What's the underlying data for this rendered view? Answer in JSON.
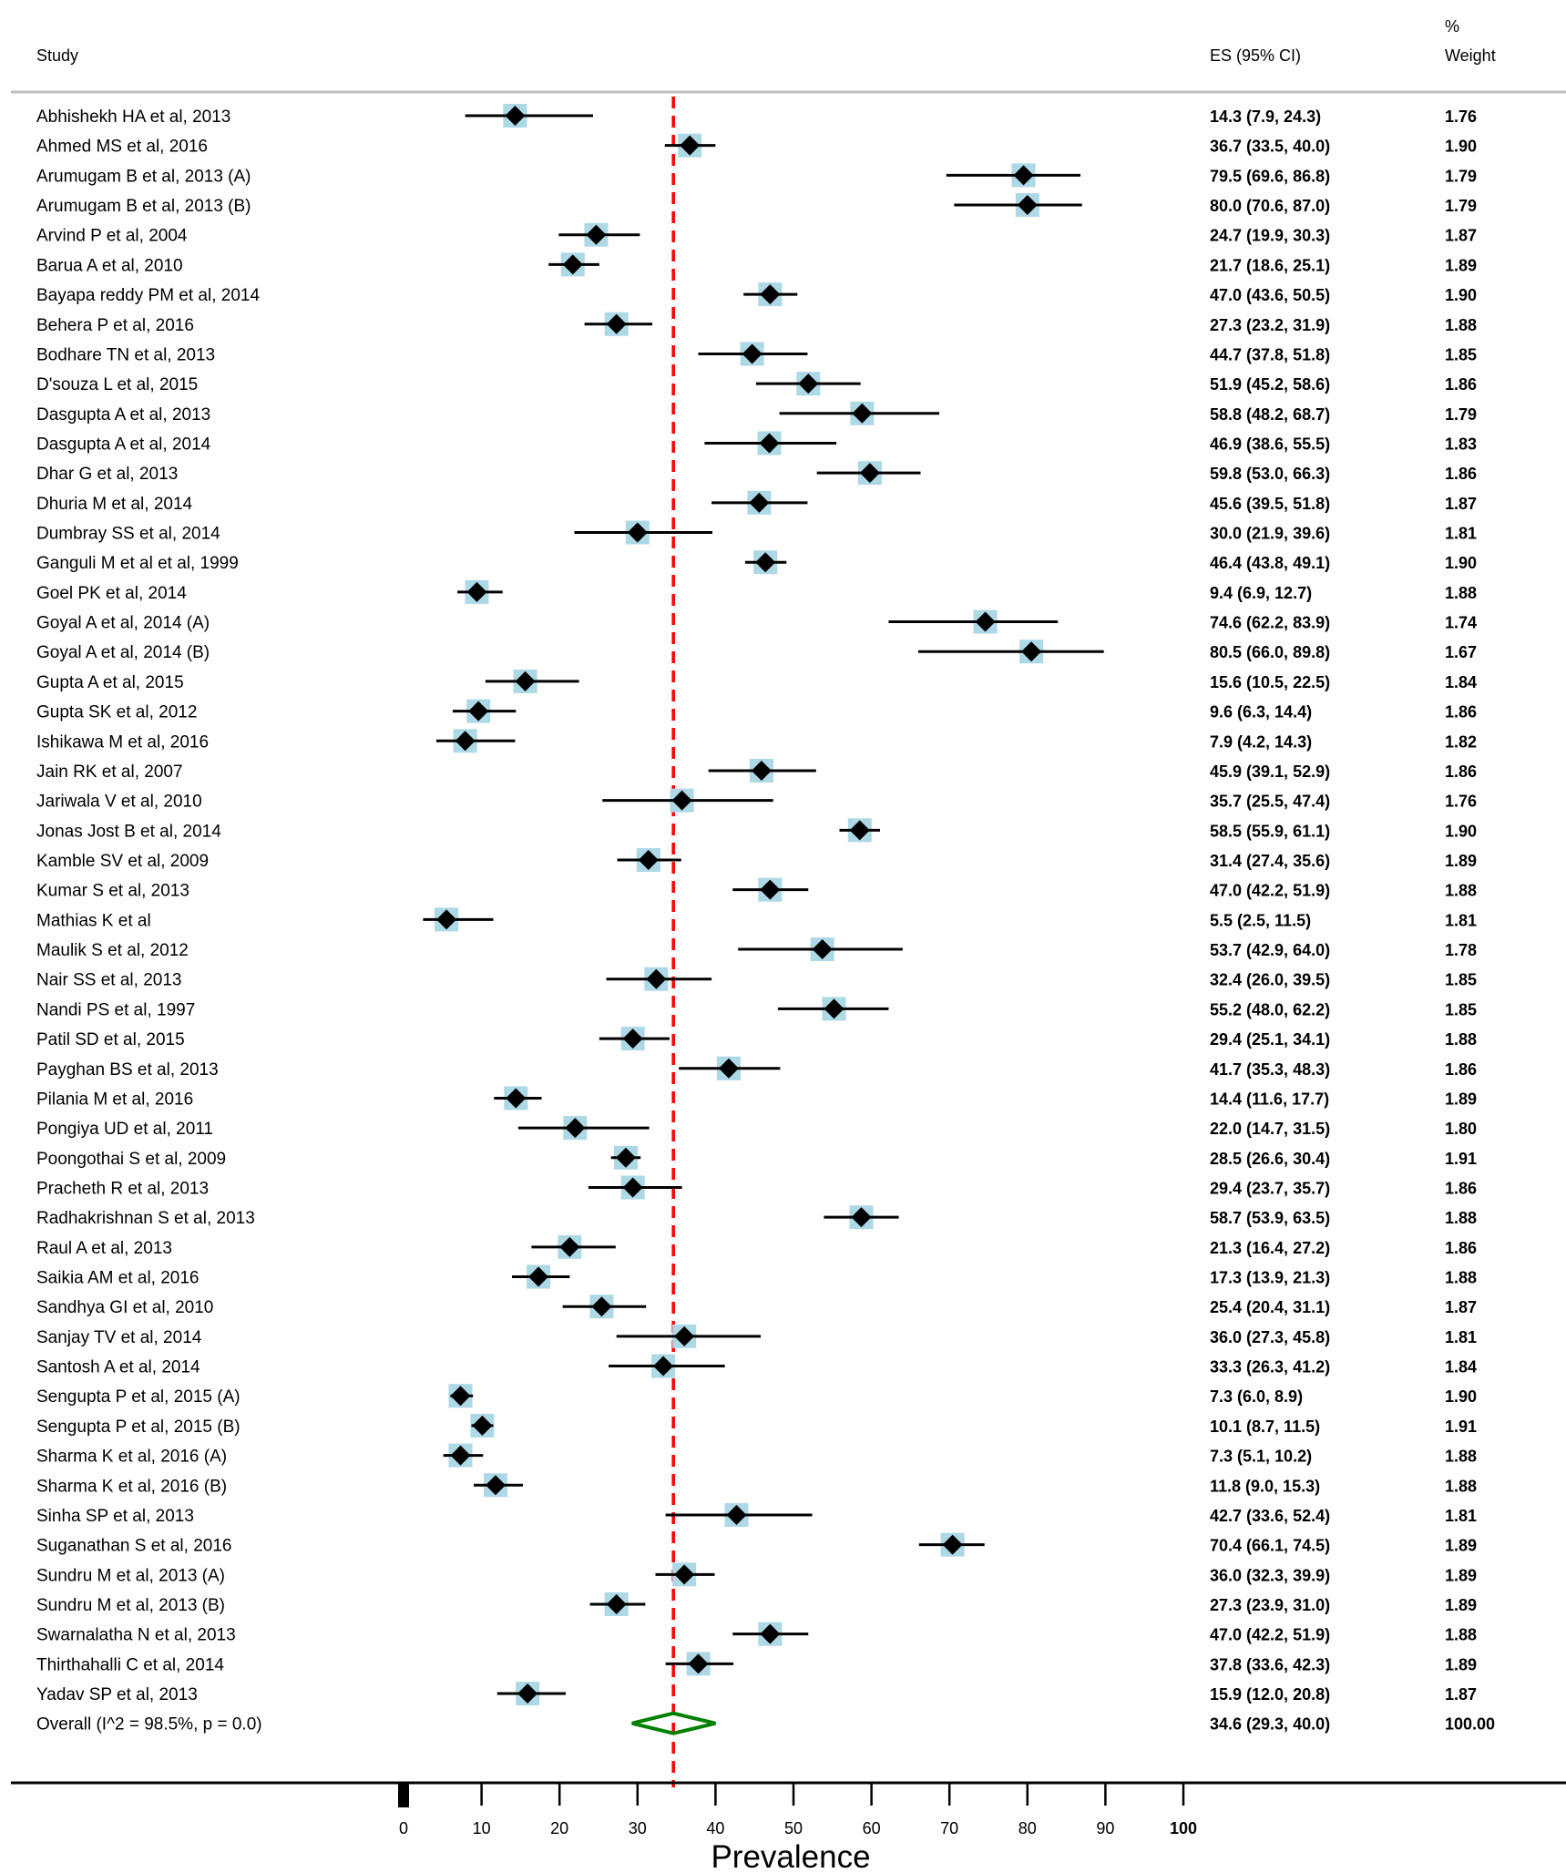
{
  "chart_data": {
    "type": "forest",
    "xlabel": "Prevalence",
    "headers": {
      "study": "Study",
      "es": "ES (95% CI)",
      "weight_line1": "%",
      "weight_line2": "Weight"
    },
    "xticks": [
      "0",
      "10",
      "20",
      "30",
      "40",
      "50",
      "60",
      "70",
      "80",
      "90",
      "100"
    ],
    "xlim": [
      0,
      100
    ],
    "overall_line": 34.6,
    "colors": {
      "ci": "#000000",
      "box": "#add8e6",
      "diamond": "#000000",
      "overall": "#008000",
      "ref_line": "#ff0000",
      "rule": "#bfbfbf"
    },
    "studies": [
      {
        "label": "Abhishekh HA et al, 2013",
        "es": 14.3,
        "lo": 7.9,
        "hi": 24.3,
        "es_text": "14.3 (7.9, 24.3)",
        "weight": "1.76"
      },
      {
        "label": "Ahmed MS et al, 2016",
        "es": 36.7,
        "lo": 33.5,
        "hi": 40.0,
        "es_text": "36.7 (33.5, 40.0)",
        "weight": "1.90"
      },
      {
        "label": "Arumugam B et al, 2013 (A)",
        "es": 79.5,
        "lo": 69.6,
        "hi": 86.8,
        "es_text": "79.5 (69.6, 86.8)",
        "weight": "1.79"
      },
      {
        "label": "Arumugam B et al, 2013 (B)",
        "es": 80.0,
        "lo": 70.6,
        "hi": 87.0,
        "es_text": "80.0 (70.6, 87.0)",
        "weight": "1.79"
      },
      {
        "label": "Arvind P et al, 2004",
        "es": 24.7,
        "lo": 19.9,
        "hi": 30.3,
        "es_text": "24.7 (19.9, 30.3)",
        "weight": "1.87"
      },
      {
        "label": "Barua A et al, 2010",
        "es": 21.7,
        "lo": 18.6,
        "hi": 25.1,
        "es_text": "21.7 (18.6, 25.1)",
        "weight": "1.89"
      },
      {
        "label": "Bayapa reddy PM et al, 2014",
        "es": 47.0,
        "lo": 43.6,
        "hi": 50.5,
        "es_text": "47.0 (43.6, 50.5)",
        "weight": "1.90"
      },
      {
        "label": "Behera P et al, 2016",
        "es": 27.3,
        "lo": 23.2,
        "hi": 31.9,
        "es_text": "27.3 (23.2, 31.9)",
        "weight": "1.88"
      },
      {
        "label": "Bodhare TN et al, 2013",
        "es": 44.7,
        "lo": 37.8,
        "hi": 51.8,
        "es_text": "44.7 (37.8, 51.8)",
        "weight": "1.85"
      },
      {
        "label": "D'souza L et al, 2015",
        "es": 51.9,
        "lo": 45.2,
        "hi": 58.6,
        "es_text": "51.9 (45.2, 58.6)",
        "weight": "1.86"
      },
      {
        "label": "Dasgupta A et al, 2013",
        "es": 58.8,
        "lo": 48.2,
        "hi": 68.7,
        "es_text": "58.8 (48.2, 68.7)",
        "weight": "1.79"
      },
      {
        "label": "Dasgupta A et al, 2014",
        "es": 46.9,
        "lo": 38.6,
        "hi": 55.5,
        "es_text": "46.9 (38.6, 55.5)",
        "weight": "1.83"
      },
      {
        "label": "Dhar G et al, 2013",
        "es": 59.8,
        "lo": 53.0,
        "hi": 66.3,
        "es_text": "59.8 (53.0, 66.3)",
        "weight": "1.86"
      },
      {
        "label": "Dhuria M et al, 2014",
        "es": 45.6,
        "lo": 39.5,
        "hi": 51.8,
        "es_text": "45.6 (39.5, 51.8)",
        "weight": "1.87"
      },
      {
        "label": "Dumbray SS et al, 2014",
        "es": 30.0,
        "lo": 21.9,
        "hi": 39.6,
        "es_text": "30.0 (21.9, 39.6)",
        "weight": "1.81"
      },
      {
        "label": "Ganguli M et al et al, 1999",
        "es": 46.4,
        "lo": 43.8,
        "hi": 49.1,
        "es_text": "46.4 (43.8, 49.1)",
        "weight": "1.90"
      },
      {
        "label": "Goel PK et al, 2014",
        "es": 9.4,
        "lo": 6.9,
        "hi": 12.7,
        "es_text": "9.4 (6.9, 12.7)",
        "weight": "1.88"
      },
      {
        "label": "Goyal A et al, 2014 (A)",
        "es": 74.6,
        "lo": 62.2,
        "hi": 83.9,
        "es_text": "74.6 (62.2, 83.9)",
        "weight": "1.74"
      },
      {
        "label": "Goyal A et al, 2014 (B)",
        "es": 80.5,
        "lo": 66.0,
        "hi": 89.8,
        "es_text": "80.5 (66.0, 89.8)",
        "weight": "1.67"
      },
      {
        "label": "Gupta A et al, 2015",
        "es": 15.6,
        "lo": 10.5,
        "hi": 22.5,
        "es_text": "15.6 (10.5, 22.5)",
        "weight": "1.84"
      },
      {
        "label": "Gupta SK et al, 2012",
        "es": 9.6,
        "lo": 6.3,
        "hi": 14.4,
        "es_text": "9.6 (6.3, 14.4)",
        "weight": "1.86"
      },
      {
        "label": "Ishikawa M et al, 2016",
        "es": 7.9,
        "lo": 4.2,
        "hi": 14.3,
        "es_text": "7.9 (4.2, 14.3)",
        "weight": "1.82"
      },
      {
        "label": "Jain RK et al, 2007",
        "es": 45.9,
        "lo": 39.1,
        "hi": 52.9,
        "es_text": "45.9 (39.1, 52.9)",
        "weight": "1.86"
      },
      {
        "label": "Jariwala V et al, 2010",
        "es": 35.7,
        "lo": 25.5,
        "hi": 47.4,
        "es_text": "35.7 (25.5, 47.4)",
        "weight": "1.76"
      },
      {
        "label": "Jonas Jost B et al, 2014",
        "es": 58.5,
        "lo": 55.9,
        "hi": 61.1,
        "es_text": "58.5 (55.9, 61.1)",
        "weight": "1.90"
      },
      {
        "label": "Kamble SV et al, 2009",
        "es": 31.4,
        "lo": 27.4,
        "hi": 35.6,
        "es_text": "31.4 (27.4, 35.6)",
        "weight": "1.89"
      },
      {
        "label": "Kumar S et al, 2013",
        "es": 47.0,
        "lo": 42.2,
        "hi": 51.9,
        "es_text": "47.0 (42.2, 51.9)",
        "weight": "1.88"
      },
      {
        "label": "Mathias K et al",
        "es": 5.5,
        "lo": 2.5,
        "hi": 11.5,
        "es_text": "5.5 (2.5, 11.5)",
        "weight": "1.81"
      },
      {
        "label": "Maulik S et al, 2012",
        "es": 53.7,
        "lo": 42.9,
        "hi": 64.0,
        "es_text": "53.7 (42.9, 64.0)",
        "weight": "1.78"
      },
      {
        "label": "Nair SS et al, 2013",
        "es": 32.4,
        "lo": 26.0,
        "hi": 39.5,
        "es_text": "32.4 (26.0, 39.5)",
        "weight": "1.85"
      },
      {
        "label": "Nandi PS et al, 1997",
        "es": 55.2,
        "lo": 48.0,
        "hi": 62.2,
        "es_text": "55.2 (48.0, 62.2)",
        "weight": "1.85"
      },
      {
        "label": "Patil  SD et al, 2015",
        "es": 29.4,
        "lo": 25.1,
        "hi": 34.1,
        "es_text": "29.4 (25.1, 34.1)",
        "weight": "1.88"
      },
      {
        "label": "Payghan BS et al, 2013",
        "es": 41.7,
        "lo": 35.3,
        "hi": 48.3,
        "es_text": "41.7 (35.3, 48.3)",
        "weight": "1.86"
      },
      {
        "label": "Pilania M et al, 2016",
        "es": 14.4,
        "lo": 11.6,
        "hi": 17.7,
        "es_text": "14.4 (11.6, 17.7)",
        "weight": "1.89"
      },
      {
        "label": "Pongiya UD et al, 2011",
        "es": 22.0,
        "lo": 14.7,
        "hi": 31.5,
        "es_text": "22.0 (14.7, 31.5)",
        "weight": "1.80"
      },
      {
        "label": "Poongothai S et al, 2009",
        "es": 28.5,
        "lo": 26.6,
        "hi": 30.4,
        "es_text": "28.5 (26.6, 30.4)",
        "weight": "1.91"
      },
      {
        "label": "Pracheth R et al, 2013",
        "es": 29.4,
        "lo": 23.7,
        "hi": 35.7,
        "es_text": "29.4 (23.7, 35.7)",
        "weight": "1.86"
      },
      {
        "label": "Radhakrishnan S et al, 2013",
        "es": 58.7,
        "lo": 53.9,
        "hi": 63.5,
        "es_text": "58.7 (53.9, 63.5)",
        "weight": "1.88"
      },
      {
        "label": "Raul A et al, 2013",
        "es": 21.3,
        "lo": 16.4,
        "hi": 27.2,
        "es_text": "21.3 (16.4, 27.2)",
        "weight": "1.86"
      },
      {
        "label": "Saikia AM et al, 2016",
        "es": 17.3,
        "lo": 13.9,
        "hi": 21.3,
        "es_text": "17.3 (13.9, 21.3)",
        "weight": "1.88"
      },
      {
        "label": "Sandhya GI et al, 2010",
        "es": 25.4,
        "lo": 20.4,
        "hi": 31.1,
        "es_text": "25.4 (20.4, 31.1)",
        "weight": "1.87"
      },
      {
        "label": "Sanjay TV et al, 2014",
        "es": 36.0,
        "lo": 27.3,
        "hi": 45.8,
        "es_text": "36.0 (27.3, 45.8)",
        "weight": "1.81"
      },
      {
        "label": "Santosh A et al, 2014",
        "es": 33.3,
        "lo": 26.3,
        "hi": 41.2,
        "es_text": "33.3 (26.3, 41.2)",
        "weight": "1.84"
      },
      {
        "label": "Sengupta P et al, 2015 (A)",
        "es": 7.3,
        "lo": 6.0,
        "hi": 8.9,
        "es_text": "7.3 (6.0, 8.9)",
        "weight": "1.90"
      },
      {
        "label": "Sengupta P et al, 2015 (B)",
        "es": 10.1,
        "lo": 8.7,
        "hi": 11.5,
        "es_text": "10.1 (8.7, 11.5)",
        "weight": "1.91"
      },
      {
        "label": "Sharma K et al, 2016 (A)",
        "es": 7.3,
        "lo": 5.1,
        "hi": 10.2,
        "es_text": "7.3 (5.1, 10.2)",
        "weight": "1.88"
      },
      {
        "label": "Sharma K et al, 2016 (B)",
        "es": 11.8,
        "lo": 9.0,
        "hi": 15.3,
        "es_text": "11.8 (9.0, 15.3)",
        "weight": "1.88"
      },
      {
        "label": "Sinha SP et al, 2013",
        "es": 42.7,
        "lo": 33.6,
        "hi": 52.4,
        "es_text": "42.7 (33.6, 52.4)",
        "weight": "1.81"
      },
      {
        "label": "Suganathan S et al, 2016",
        "es": 70.4,
        "lo": 66.1,
        "hi": 74.5,
        "es_text": "70.4 (66.1, 74.5)",
        "weight": "1.89"
      },
      {
        "label": "Sundru M et al, 2013 (A)",
        "es": 36.0,
        "lo": 32.3,
        "hi": 39.9,
        "es_text": "36.0 (32.3, 39.9)",
        "weight": "1.89"
      },
      {
        "label": "Sundru M et al, 2013 (B)",
        "es": 27.3,
        "lo": 23.9,
        "hi": 31.0,
        "es_text": "27.3 (23.9, 31.0)",
        "weight": "1.89"
      },
      {
        "label": "Swarnalatha N et al, 2013",
        "es": 47.0,
        "lo": 42.2,
        "hi": 51.9,
        "es_text": "47.0 (42.2, 51.9)",
        "weight": "1.88"
      },
      {
        "label": "Thirthahalli C et al, 2014",
        "es": 37.8,
        "lo": 33.6,
        "hi": 42.3,
        "es_text": "37.8 (33.6, 42.3)",
        "weight": "1.89"
      },
      {
        "label": "Yadav SP et al, 2013",
        "es": 15.9,
        "lo": 12.0,
        "hi": 20.8,
        "es_text": "15.9 (12.0, 20.8)",
        "weight": "1.87"
      }
    ],
    "overall": {
      "label": "Overall  (I^2 = 98.5%, p = 0.0)",
      "es": 34.6,
      "lo": 29.3,
      "hi": 40.0,
      "es_text": "34.6 (29.3, 40.0)",
      "weight": "100.00"
    }
  }
}
